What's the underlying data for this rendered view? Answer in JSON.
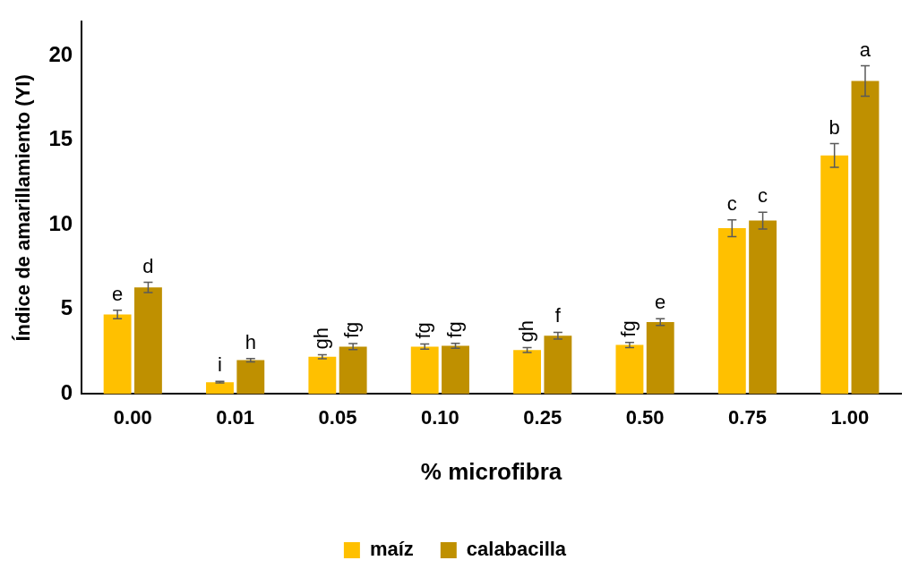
{
  "chart_data": {
    "type": "bar",
    "xlabel": "% microfibra",
    "ylabel": "Índice de amarillamiento (YI)",
    "categories": [
      "0.00",
      "0.01",
      "0.05",
      "0.10",
      "0.25",
      "0.50",
      "0.75",
      "1.00"
    ],
    "series": [
      {
        "name": "maíz",
        "color": "#ffc000",
        "values": [
          4.7,
          0.7,
          2.2,
          2.8,
          2.6,
          2.9,
          9.8,
          14.1
        ],
        "errors": [
          0.25,
          0.05,
          0.12,
          0.15,
          0.15,
          0.15,
          0.5,
          0.7
        ],
        "value_labels": [
          "e",
          "i",
          "gh",
          "fg",
          "gh",
          "fg",
          "c",
          "b"
        ]
      },
      {
        "name": "calabacilla",
        "color": "#bf9000",
        "values": [
          6.3,
          2.0,
          2.8,
          2.85,
          3.45,
          4.25,
          10.25,
          18.5
        ],
        "errors": [
          0.3,
          0.1,
          0.18,
          0.15,
          0.2,
          0.2,
          0.5,
          0.9
        ],
        "value_labels": [
          "d",
          "h",
          "fg",
          "fg",
          "f",
          "e",
          "c",
          "a"
        ]
      }
    ],
    "ylim": [
      0,
      22
    ],
    "yticks": [
      0,
      5,
      10,
      15,
      20
    ],
    "grid": false,
    "legend": "bottom"
  }
}
